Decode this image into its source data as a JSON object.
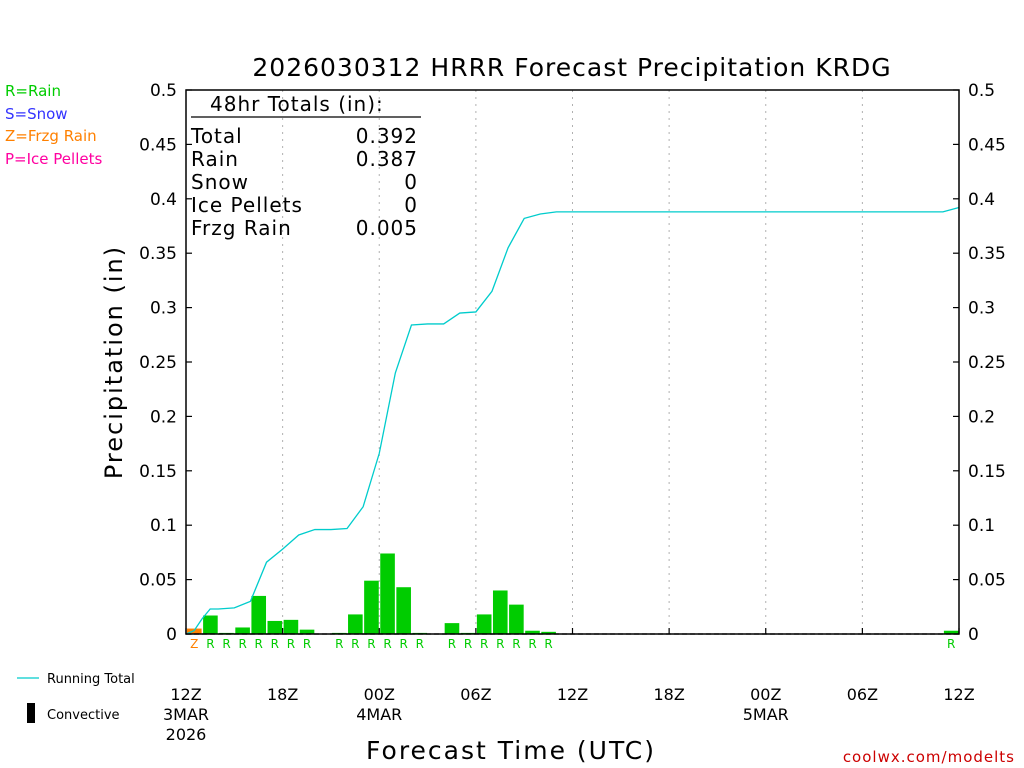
{
  "chart_data": {
    "type": "bar",
    "title": "2026030312 HRRR Forecast Precipitation KRDG",
    "xlabel": "Forecast Time (UTC)",
    "ylabel": "Precipitation (in)",
    "ylim": [
      0,
      0.5
    ],
    "y_ticks": [
      "0",
      "0.05",
      "0.1",
      "0.15",
      "0.2",
      "0.25",
      "0.3",
      "0.35",
      "0.4",
      "0.45",
      "0.5"
    ],
    "x_range_hours": [
      0,
      48
    ],
    "grid": "vertical dotted every 6 hours",
    "x_ticks": [
      {
        "hour": 0,
        "label": "12Z",
        "date": "3MAR",
        "year": "2026"
      },
      {
        "hour": 6,
        "label": "18Z"
      },
      {
        "hour": 12,
        "label": "00Z",
        "date": "4MAR"
      },
      {
        "hour": 18,
        "label": "06Z"
      },
      {
        "hour": 24,
        "label": "12Z"
      },
      {
        "hour": 30,
        "label": "18Z"
      },
      {
        "hour": 36,
        "label": "00Z",
        "date": "5MAR"
      },
      {
        "hour": 42,
        "label": "06Z"
      },
      {
        "hour": 48,
        "label": "12Z"
      }
    ],
    "hourly_precip": [
      {
        "hour": 1,
        "value": 0.005,
        "type": "Z"
      },
      {
        "hour": 2,
        "value": 0.017,
        "type": "R"
      },
      {
        "hour": 3,
        "value": 0.001,
        "type": "R"
      },
      {
        "hour": 4,
        "value": 0.006,
        "type": "R"
      },
      {
        "hour": 5,
        "value": 0.035,
        "type": "R"
      },
      {
        "hour": 6,
        "value": 0.012,
        "type": "R"
      },
      {
        "hour": 7,
        "value": 0.013,
        "type": "R"
      },
      {
        "hour": 8,
        "value": 0.004,
        "type": "R"
      },
      {
        "hour": 10,
        "value": 0.001,
        "type": "R"
      },
      {
        "hour": 11,
        "value": 0.018,
        "type": "R"
      },
      {
        "hour": 12,
        "value": 0.049,
        "type": "R"
      },
      {
        "hour": 13,
        "value": 0.074,
        "type": "R"
      },
      {
        "hour": 14,
        "value": 0.043,
        "type": "R"
      },
      {
        "hour": 15,
        "value": 0.001,
        "type": "R"
      },
      {
        "hour": 17,
        "value": 0.01,
        "type": "R"
      },
      {
        "hour": 18,
        "value": 0.001,
        "type": "R"
      },
      {
        "hour": 19,
        "value": 0.018,
        "type": "R"
      },
      {
        "hour": 20,
        "value": 0.04,
        "type": "R"
      },
      {
        "hour": 21,
        "value": 0.027,
        "type": "R"
      },
      {
        "hour": 22,
        "value": 0.003,
        "type": "R"
      },
      {
        "hour": 23,
        "value": 0.002,
        "type": "R"
      },
      {
        "hour": 48,
        "value": 0.003,
        "type": "R"
      }
    ],
    "running_total": {
      "name": "Running Total",
      "x": [
        0,
        0.5,
        1,
        1.5,
        2,
        3,
        4,
        5,
        6,
        7,
        8,
        9,
        10,
        11,
        12,
        13,
        14,
        15,
        16,
        17,
        18,
        19,
        20,
        21,
        22,
        23,
        24,
        47,
        48
      ],
      "y": [
        0,
        0.003,
        0.014,
        0.023,
        0.023,
        0.024,
        0.03,
        0.066,
        0.078,
        0.091,
        0.096,
        0.096,
        0.097,
        0.117,
        0.166,
        0.24,
        0.284,
        0.285,
        0.285,
        0.295,
        0.296,
        0.315,
        0.355,
        0.382,
        0.386,
        0.388,
        0.388,
        0.388,
        0.392
      ]
    },
    "totals_box": {
      "header": "48hr Totals (in):",
      "rows": [
        {
          "label": "Total",
          "value": "0.392"
        },
        {
          "label": "Rain",
          "value": "0.387"
        },
        {
          "label": "Snow",
          "value": "0"
        },
        {
          "label": "Ice Pellets",
          "value": "0"
        },
        {
          "label": "Frzg Rain",
          "value": "0.005"
        }
      ]
    }
  },
  "colors": {
    "rain": "#00cc00",
    "snow": "#3333ff",
    "frzg_rain": "#ff8000",
    "ice_pellets": "#ff00a0",
    "running_total": "#00cccc",
    "convective": "#000000",
    "watermark": "#cc0000"
  },
  "type_legend": [
    {
      "text": "R=Rain",
      "color": "#00cc00"
    },
    {
      "text": "S=Snow",
      "color": "#3333ff"
    },
    {
      "text": "Z=Frzg Rain",
      "color": "#ff8000"
    },
    {
      "text": "P=Ice Pellets",
      "color": "#ff00a0"
    }
  ],
  "line_legend": {
    "running_total": "Running Total",
    "convective": "Convective"
  },
  "watermark": "coolwx.com/modelts"
}
